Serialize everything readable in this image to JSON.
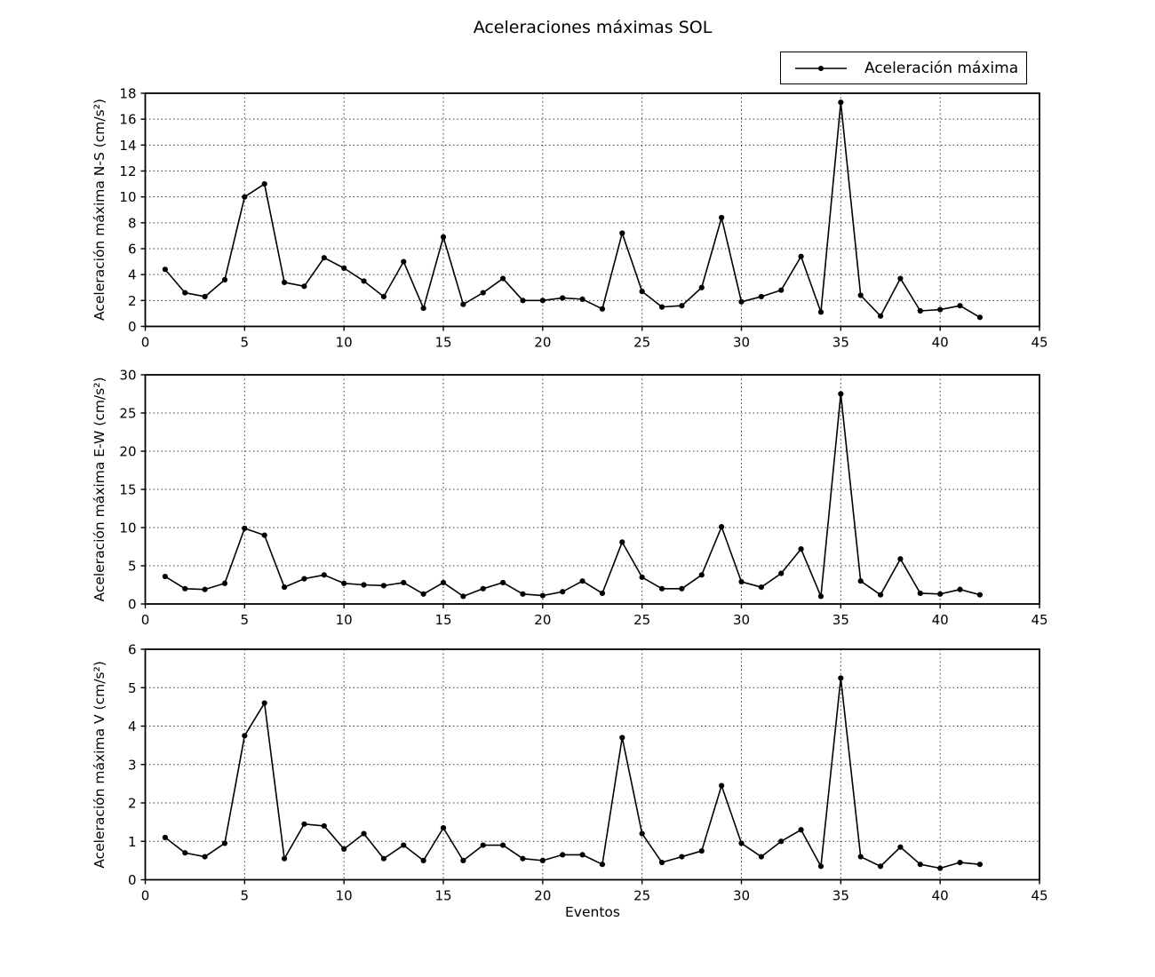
{
  "title": "Aceleraciones máximas SOL",
  "xlabel": "Eventos",
  "legend": {
    "label": "Aceleración máxima",
    "marker_icon": "line-dot-icon",
    "position": "upper-right-above-axes"
  },
  "colors": {
    "line": "#000000",
    "marker": "#000000",
    "grid": "#3a3a3a",
    "text": "#000000",
    "background": "#ffffff"
  },
  "chart_data": [
    {
      "type": "line",
      "series_name": "Aceleración máxima",
      "ylabel": "Aceleración máxima N-S (cm/s²)",
      "xlabel": "",
      "xlim": [
        0,
        45
      ],
      "ylim": [
        0,
        18
      ],
      "xticks": [
        0,
        5,
        10,
        15,
        20,
        25,
        30,
        35,
        40,
        45
      ],
      "yticks": [
        0,
        2,
        4,
        6,
        8,
        10,
        12,
        14,
        16,
        18
      ],
      "grid": true,
      "x": [
        1,
        2,
        3,
        4,
        5,
        6,
        7,
        8,
        9,
        10,
        11,
        12,
        13,
        14,
        15,
        16,
        17,
        18,
        19,
        20,
        21,
        22,
        23,
        24,
        25,
        26,
        27,
        28,
        29,
        30,
        31,
        32,
        33,
        34,
        35,
        36,
        37,
        38,
        39,
        40,
        41,
        42
      ],
      "values": [
        4.4,
        2.6,
        2.3,
        3.6,
        10.0,
        11.0,
        3.4,
        3.1,
        5.3,
        4.5,
        3.5,
        2.3,
        5.0,
        1.4,
        6.9,
        1.7,
        2.6,
        3.7,
        2.0,
        2.0,
        2.2,
        2.1,
        1.35,
        7.2,
        2.7,
        1.5,
        1.6,
        3.0,
        8.4,
        1.9,
        2.3,
        2.8,
        5.4,
        1.1,
        17.3,
        2.4,
        0.8,
        3.7,
        1.2,
        1.3,
        1.6,
        0.7
      ]
    },
    {
      "type": "line",
      "series_name": "Aceleración máxima",
      "ylabel": "Aceleración máxima E-W (cm/s²)",
      "xlabel": "",
      "xlim": [
        0,
        45
      ],
      "ylim": [
        0,
        30
      ],
      "xticks": [
        0,
        5,
        10,
        15,
        20,
        25,
        30,
        35,
        40,
        45
      ],
      "yticks": [
        0,
        5,
        10,
        15,
        20,
        25,
        30
      ],
      "grid": true,
      "x": [
        1,
        2,
        3,
        4,
        5,
        6,
        7,
        8,
        9,
        10,
        11,
        12,
        13,
        14,
        15,
        16,
        17,
        18,
        19,
        20,
        21,
        22,
        23,
        24,
        25,
        26,
        27,
        28,
        29,
        30,
        31,
        32,
        33,
        34,
        35,
        36,
        37,
        38,
        39,
        40,
        41,
        42
      ],
      "values": [
        3.6,
        2.0,
        1.9,
        2.7,
        9.9,
        9.0,
        2.2,
        3.3,
        3.8,
        2.7,
        2.5,
        2.4,
        2.8,
        1.3,
        2.8,
        1.0,
        2.0,
        2.8,
        1.3,
        1.1,
        1.6,
        3.0,
        1.4,
        8.1,
        3.5,
        2.0,
        2.0,
        3.8,
        10.1,
        2.9,
        2.2,
        4.0,
        7.2,
        1.0,
        27.5,
        3.0,
        1.2,
        5.9,
        1.4,
        1.3,
        1.9,
        1.2
      ]
    },
    {
      "type": "line",
      "series_name": "Aceleración máxima",
      "ylabel": "Aceleración máxima V (cm/s²)",
      "xlabel": "Eventos",
      "xlim": [
        0,
        45
      ],
      "ylim": [
        0,
        6
      ],
      "xticks": [
        0,
        5,
        10,
        15,
        20,
        25,
        30,
        35,
        40,
        45
      ],
      "yticks": [
        0,
        1,
        2,
        3,
        4,
        5,
        6
      ],
      "grid": true,
      "x": [
        1,
        2,
        3,
        4,
        5,
        6,
        7,
        8,
        9,
        10,
        11,
        12,
        13,
        14,
        15,
        16,
        17,
        18,
        19,
        20,
        21,
        22,
        23,
        24,
        25,
        26,
        27,
        28,
        29,
        30,
        31,
        32,
        33,
        34,
        35,
        36,
        37,
        38,
        39,
        40,
        41,
        42
      ],
      "values": [
        1.1,
        0.7,
        0.6,
        0.95,
        3.75,
        4.6,
        0.55,
        1.45,
        1.4,
        0.8,
        1.2,
        0.55,
        0.9,
        0.5,
        1.35,
        0.5,
        0.9,
        0.9,
        0.55,
        0.5,
        0.65,
        0.65,
        0.4,
        3.7,
        1.2,
        0.45,
        0.6,
        0.75,
        2.45,
        0.95,
        0.6,
        1.0,
        1.3,
        0.35,
        5.25,
        0.6,
        0.35,
        0.85,
        0.4,
        0.3,
        0.45,
        0.4
      ]
    }
  ]
}
